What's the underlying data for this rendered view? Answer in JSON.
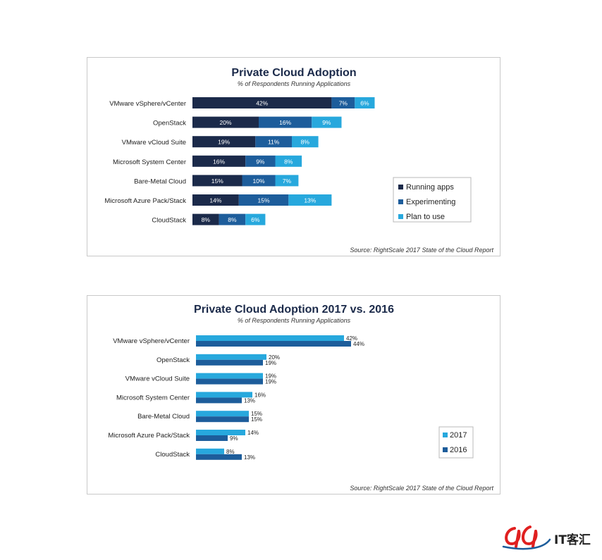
{
  "colors": {
    "running": "#1b2a4a",
    "experimenting": "#1d5d9b",
    "plan": "#27a8dd",
    "y2017": "#27a8dd",
    "y2016": "#1d5d9b",
    "logo_red": "#e02020"
  },
  "chart_data": [
    {
      "type": "bar",
      "orientation": "horizontal",
      "stacked": true,
      "title": "Private Cloud Adoption",
      "subtitle": "% of Respondents Running Applications",
      "source": "Source: RightScale 2017 State of the Cloud Report",
      "categories": [
        "VMware vSphere/vCenter",
        "OpenStack",
        "VMware vCloud Suite",
        "Microsoft System Center",
        "Bare-Metal Cloud",
        "Microsoft Azure Pack/Stack",
        "CloudStack"
      ],
      "series": [
        {
          "name": "Running apps",
          "values": [
            42,
            20,
            19,
            16,
            15,
            14,
            8
          ],
          "color": "#1b2a4a"
        },
        {
          "name": "Experimenting",
          "values": [
            7,
            16,
            11,
            9,
            10,
            15,
            8
          ],
          "color": "#1d5d9b"
        },
        {
          "name": "Plan to use",
          "values": [
            6,
            9,
            8,
            8,
            7,
            13,
            6
          ],
          "color": "#27a8dd"
        }
      ],
      "legend": "bottom-right",
      "grid": false
    },
    {
      "type": "bar",
      "orientation": "horizontal",
      "stacked": false,
      "title": "Private Cloud Adoption 2017 vs. 2016",
      "subtitle": "% of Respondents Running Applications",
      "source": "Source: RightScale 2017 State of the Cloud Report",
      "categories": [
        "VMware vSphere/vCenter",
        "OpenStack",
        "VMware vCloud Suite",
        "Microsoft System Center",
        "Bare-Metal Cloud",
        "Microsoft Azure Pack/Stack",
        "CloudStack"
      ],
      "series": [
        {
          "name": "2017",
          "values": [
            42,
            20,
            19,
            16,
            15,
            14,
            8
          ],
          "color": "#27a8dd"
        },
        {
          "name": "2016",
          "values": [
            44,
            19,
            19,
            13,
            15,
            9,
            13
          ],
          "color": "#1d5d9b"
        }
      ],
      "legend": "bottom-right",
      "grid": false
    }
  ],
  "logo": {
    "text": "IT客汇"
  }
}
